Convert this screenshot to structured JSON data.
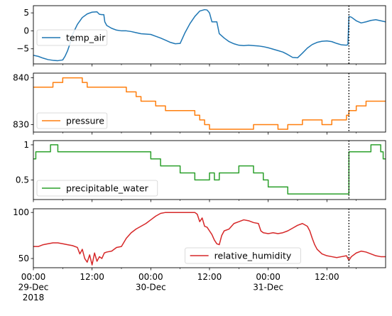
{
  "chart_data": {
    "type": "line",
    "x_ticks": [
      {
        "hour": 0,
        "lines": [
          "00:00",
          "29-Dec",
          "2018"
        ]
      },
      {
        "hour": 12,
        "lines": [
          "12:00"
        ]
      },
      {
        "hour": 24,
        "lines": [
          "00:00",
          "30-Dec"
        ]
      },
      {
        "hour": 36,
        "lines": [
          "12:00"
        ]
      },
      {
        "hour": 48,
        "lines": [
          "00:00",
          "31-Dec"
        ]
      },
      {
        "hour": 60,
        "lines": [
          "12:00"
        ]
      }
    ],
    "x_minor_hours": [
      6,
      18,
      30,
      42,
      54,
      66
    ],
    "x_range_hours": [
      0,
      72
    ],
    "marker_line_hour": 64.5,
    "panels": [
      {
        "series": "temp_air",
        "color": "#1f77b4",
        "ylim": [
          -9.2,
          7
        ],
        "yticks": [
          -5,
          0,
          5
        ],
        "legend": "center-left",
        "points": [
          [
            0,
            -6.8
          ],
          [
            1,
            -7.1
          ],
          [
            2,
            -7.6
          ],
          [
            3,
            -8.0
          ],
          [
            4,
            -8.2
          ],
          [
            5,
            -8.3
          ],
          [
            6,
            -8.1
          ],
          [
            6.5,
            -7.0
          ],
          [
            7,
            -5.5
          ],
          [
            7.5,
            -3.5
          ],
          [
            8,
            -1.0
          ],
          [
            9,
            1.8
          ],
          [
            10,
            3.7
          ],
          [
            11,
            4.7
          ],
          [
            12,
            5.2
          ],
          [
            13,
            5.3
          ],
          [
            13.5,
            4.6
          ],
          [
            14,
            4.5
          ],
          [
            14.4,
            4.5
          ],
          [
            14.6,
            2.5
          ],
          [
            15,
            1.5
          ],
          [
            16,
            0.7
          ],
          [
            17,
            0.2
          ],
          [
            18,
            0.0
          ],
          [
            19,
            0.0
          ],
          [
            20,
            -0.2
          ],
          [
            21,
            -0.5
          ],
          [
            22,
            -0.8
          ],
          [
            23,
            -0.9
          ],
          [
            24,
            -1.0
          ],
          [
            25,
            -1.5
          ],
          [
            26,
            -2.0
          ],
          [
            27,
            -2.6
          ],
          [
            28,
            -3.2
          ],
          [
            29,
            -3.6
          ],
          [
            30,
            -3.5
          ],
          [
            31,
            -0.5
          ],
          [
            32,
            2.0
          ],
          [
            33,
            4.0
          ],
          [
            34,
            5.5
          ],
          [
            35,
            5.9
          ],
          [
            35.5,
            5.8
          ],
          [
            36,
            5.0
          ],
          [
            36.5,
            2.5
          ],
          [
            37.5,
            2.5
          ],
          [
            38,
            -0.8
          ],
          [
            39,
            -2.0
          ],
          [
            40,
            -3.0
          ],
          [
            41,
            -3.6
          ],
          [
            42,
            -4.0
          ],
          [
            43,
            -4.1
          ],
          [
            44,
            -4.0
          ],
          [
            45,
            -4.1
          ],
          [
            46,
            -4.2
          ],
          [
            47,
            -4.4
          ],
          [
            48,
            -4.7
          ],
          [
            49,
            -5.1
          ],
          [
            50,
            -5.5
          ],
          [
            51,
            -5.9
          ],
          [
            52,
            -6.6
          ],
          [
            53,
            -7.4
          ],
          [
            54,
            -7.5
          ],
          [
            55,
            -6.2
          ],
          [
            56,
            -4.8
          ],
          [
            57,
            -3.8
          ],
          [
            58,
            -3.2
          ],
          [
            59,
            -2.9
          ],
          [
            60,
            -2.8
          ],
          [
            61,
            -3.0
          ],
          [
            62,
            -3.5
          ],
          [
            63,
            -3.9
          ],
          [
            64,
            -4.0
          ],
          [
            64.3,
            -3.8
          ],
          [
            64.5,
            4.0
          ],
          [
            65,
            3.8
          ],
          [
            66,
            2.8
          ],
          [
            67,
            2.2
          ],
          [
            68,
            2.5
          ],
          [
            69,
            2.9
          ],
          [
            70,
            3.1
          ],
          [
            71,
            2.8
          ],
          [
            72,
            2.5
          ]
        ]
      },
      {
        "series": "pressure",
        "color": "#ff7f0e",
        "ylim": [
          828.4,
          841
        ],
        "yticks": [
          830,
          840
        ],
        "legend": "lower-left",
        "step": true,
        "points": [
          [
            0,
            838
          ],
          [
            4,
            838
          ],
          [
            4,
            839
          ],
          [
            6,
            839
          ],
          [
            6,
            840
          ],
          [
            10,
            840
          ],
          [
            10,
            839
          ],
          [
            11,
            839
          ],
          [
            11,
            838
          ],
          [
            19,
            838
          ],
          [
            19,
            837
          ],
          [
            21,
            837
          ],
          [
            21,
            836
          ],
          [
            22,
            836
          ],
          [
            22,
            835
          ],
          [
            25,
            835
          ],
          [
            25,
            834
          ],
          [
            27,
            834
          ],
          [
            27,
            833
          ],
          [
            33,
            833
          ],
          [
            33,
            832
          ],
          [
            34,
            832
          ],
          [
            34,
            831
          ],
          [
            35,
            831
          ],
          [
            35,
            830
          ],
          [
            36,
            830
          ],
          [
            36,
            829
          ],
          [
            45,
            829
          ],
          [
            45,
            830
          ],
          [
            50,
            830
          ],
          [
            50,
            829
          ],
          [
            52,
            829
          ],
          [
            52,
            830
          ],
          [
            55,
            830
          ],
          [
            55,
            831
          ],
          [
            59,
            831
          ],
          [
            59,
            830
          ],
          [
            61,
            830
          ],
          [
            61,
            831
          ],
          [
            64,
            831
          ],
          [
            64,
            832
          ],
          [
            64.5,
            832
          ],
          [
            64.5,
            833
          ],
          [
            66,
            833
          ],
          [
            66,
            834
          ],
          [
            68,
            834
          ],
          [
            68,
            835
          ],
          [
            72,
            835
          ]
        ]
      },
      {
        "series": "precipitable_water",
        "color": "#2ca02c",
        "ylim": [
          0.22,
          1.06
        ],
        "yticks": [
          0.5,
          1.0
        ],
        "legend": "lower-left",
        "step": true,
        "points": [
          [
            0,
            0.8
          ],
          [
            0.5,
            0.8
          ],
          [
            0.5,
            0.9
          ],
          [
            3.5,
            0.9
          ],
          [
            3.5,
            1.0
          ],
          [
            5,
            1.0
          ],
          [
            5,
            0.9
          ],
          [
            24,
            0.9
          ],
          [
            24,
            0.8
          ],
          [
            26,
            0.8
          ],
          [
            26,
            0.7
          ],
          [
            30,
            0.7
          ],
          [
            30,
            0.6
          ],
          [
            33,
            0.6
          ],
          [
            33,
            0.5
          ],
          [
            36,
            0.5
          ],
          [
            36,
            0.6
          ],
          [
            37,
            0.6
          ],
          [
            37,
            0.5
          ],
          [
            38,
            0.5
          ],
          [
            38,
            0.6
          ],
          [
            42,
            0.6
          ],
          [
            42,
            0.7
          ],
          [
            45,
            0.7
          ],
          [
            45,
            0.6
          ],
          [
            47,
            0.6
          ],
          [
            47,
            0.5
          ],
          [
            48,
            0.5
          ],
          [
            48,
            0.4
          ],
          [
            52,
            0.4
          ],
          [
            52,
            0.3
          ],
          [
            64.5,
            0.3
          ],
          [
            64.5,
            0.9
          ],
          [
            69,
            0.9
          ],
          [
            69,
            1.0
          ],
          [
            71,
            1.0
          ],
          [
            71,
            0.9
          ],
          [
            71.5,
            0.9
          ],
          [
            71.5,
            0.8
          ],
          [
            72,
            0.8
          ]
        ]
      },
      {
        "series": "relative_humidity",
        "color": "#d62728",
        "ylim": [
          40,
          104
        ],
        "yticks": [
          50,
          100
        ],
        "legend": "lower-center",
        "points": [
          [
            0,
            63
          ],
          [
            1,
            63
          ],
          [
            2,
            65
          ],
          [
            3,
            66
          ],
          [
            4,
            67
          ],
          [
            5,
            67
          ],
          [
            6,
            66
          ],
          [
            7,
            65
          ],
          [
            8,
            64
          ],
          [
            9,
            62
          ],
          [
            9.5,
            55
          ],
          [
            10,
            60
          ],
          [
            10.5,
            50
          ],
          [
            11,
            46
          ],
          [
            11.5,
            54
          ],
          [
            12,
            43
          ],
          [
            12.5,
            56
          ],
          [
            13,
            47
          ],
          [
            13.5,
            52
          ],
          [
            14,
            50
          ],
          [
            14.5,
            56
          ],
          [
            15,
            57
          ],
          [
            16,
            58
          ],
          [
            17,
            62
          ],
          [
            18,
            63
          ],
          [
            19,
            72
          ],
          [
            20,
            78
          ],
          [
            21,
            82
          ],
          [
            22,
            85
          ],
          [
            23,
            88
          ],
          [
            24,
            92
          ],
          [
            25,
            96
          ],
          [
            26,
            99
          ],
          [
            27,
            100
          ],
          [
            28,
            100
          ],
          [
            29,
            100
          ],
          [
            30,
            100
          ],
          [
            31,
            100
          ],
          [
            32,
            100
          ],
          [
            33,
            100
          ],
          [
            33.5,
            98
          ],
          [
            34,
            90
          ],
          [
            34.5,
            94
          ],
          [
            35,
            85
          ],
          [
            35.5,
            84
          ],
          [
            36,
            80
          ],
          [
            36.5,
            76
          ],
          [
            37,
            70
          ],
          [
            37.5,
            66
          ],
          [
            38,
            65
          ],
          [
            38.5,
            75
          ],
          [
            39,
            80
          ],
          [
            40,
            82
          ],
          [
            41,
            88
          ],
          [
            42,
            90
          ],
          [
            43,
            92
          ],
          [
            44,
            91
          ],
          [
            45,
            89
          ],
          [
            46,
            88
          ],
          [
            46.5,
            80
          ],
          [
            47,
            78
          ],
          [
            48,
            77
          ],
          [
            49,
            78
          ],
          [
            50,
            77
          ],
          [
            51,
            78
          ],
          [
            52,
            80
          ],
          [
            53,
            83
          ],
          [
            54,
            86
          ],
          [
            55,
            88
          ],
          [
            56,
            85
          ],
          [
            56.5,
            80
          ],
          [
            57,
            72
          ],
          [
            57.5,
            65
          ],
          [
            58,
            60
          ],
          [
            59,
            55
          ],
          [
            60,
            53
          ],
          [
            61,
            52
          ],
          [
            62,
            51
          ],
          [
            63,
            52
          ],
          [
            64,
            53
          ],
          [
            64.5,
            48
          ],
          [
            65,
            52
          ],
          [
            66,
            56
          ],
          [
            67,
            58
          ],
          [
            68,
            57
          ],
          [
            69,
            55
          ],
          [
            70,
            53
          ],
          [
            71,
            52
          ],
          [
            72,
            52
          ]
        ]
      }
    ]
  }
}
